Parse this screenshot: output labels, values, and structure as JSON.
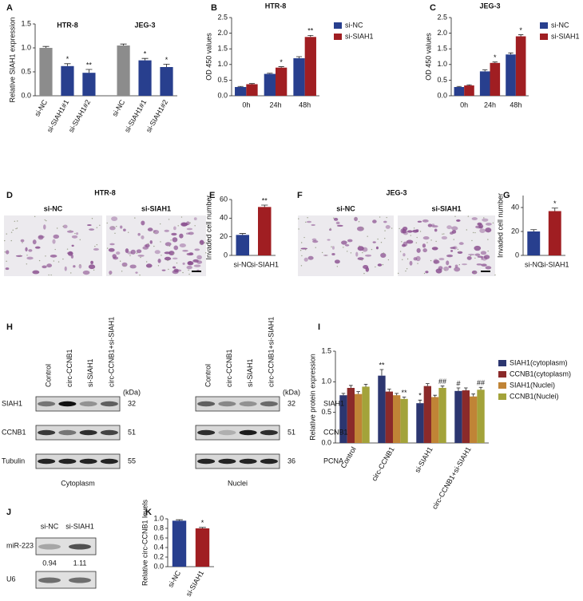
{
  "chart_data": [
    {
      "type": "bar",
      "ylabel": "Relative SIAH1 expression",
      "group_labels": [
        "HTR-8",
        "JEG-3"
      ],
      "categories": [
        "si-NC",
        "si-SIAH1#1",
        "si-SIAH1#2",
        "si-NC",
        "si-SIAH1#1",
        "si-SIAH1#2"
      ],
      "values": [
        1.0,
        0.62,
        0.48,
        1.05,
        0.74,
        0.6
      ],
      "errors": [
        0.03,
        0.05,
        0.07,
        0.03,
        0.04,
        0.06
      ],
      "annotations": [
        null,
        "*",
        "**",
        null,
        "*",
        "*"
      ],
      "colors": [
        "#8c8c8c",
        "#283f8e",
        "#283f8e",
        "#8c8c8c",
        "#283f8e",
        "#283f8e"
      ],
      "ylim": [
        0,
        1.5
      ],
      "yticks": [
        {
          "value": 0,
          "label": "0.0"
        },
        0.5,
        {
          "value": 1,
          "label": "1.0"
        },
        1.5
      ]
    },
    {
      "type": "bar",
      "title": "HTR-8",
      "ylabel": "OD 450 values",
      "categories": [
        "0h",
        "24h",
        "48h"
      ],
      "series": [
        {
          "name": "si-NC",
          "color": "#283f8e",
          "values": [
            0.28,
            0.7,
            1.2
          ],
          "errors": [
            0.02,
            0.02,
            0.05
          ],
          "annotations": [
            null,
            null,
            null
          ]
        },
        {
          "name": "si-SIAH1",
          "color": "#a01e22",
          "values": [
            0.37,
            0.9,
            1.88
          ],
          "errors": [
            0.02,
            0.03,
            0.05
          ],
          "annotations": [
            null,
            "*",
            "**"
          ]
        }
      ],
      "ylim": [
        0,
        2.5
      ],
      "yticks": [
        {
          "value": 0,
          "label": "0.0"
        },
        0.5,
        {
          "value": 1,
          "label": "1.0"
        },
        1.5,
        {
          "value": 2,
          "label": "2.0"
        },
        2.5
      ],
      "legend": "upper right"
    },
    {
      "type": "bar",
      "title": "JEG-3",
      "ylabel": "OD 450 values",
      "categories": [
        "0h",
        "24h",
        "48h"
      ],
      "series": [
        {
          "name": "si-NC",
          "color": "#283f8e",
          "values": [
            0.28,
            0.78,
            1.32
          ],
          "errors": [
            0.02,
            0.05,
            0.05
          ],
          "annotations": [
            null,
            null,
            null
          ]
        },
        {
          "name": "si-SIAH1",
          "color": "#a01e22",
          "values": [
            0.33,
            1.05,
            1.9
          ],
          "errors": [
            0.02,
            0.03,
            0.05
          ],
          "annotations": [
            null,
            "*",
            "*"
          ]
        }
      ],
      "ylim": [
        0,
        2.5
      ],
      "yticks": [
        {
          "value": 0,
          "label": "0.0"
        },
        0.5,
        {
          "value": 1,
          "label": "1.0"
        },
        1.5,
        {
          "value": 2,
          "label": "2.0"
        },
        2.5
      ],
      "legend": "upper right"
    },
    {
      "type": "bar",
      "ylabel": "Invaded cell number",
      "categories": [
        "si-NC",
        "si-SIAH1"
      ],
      "values": [
        22,
        52
      ],
      "errors": [
        1.5,
        2
      ],
      "annotations": [
        null,
        "**"
      ],
      "colors": [
        "#283f8e",
        "#a01e22"
      ],
      "ylim": [
        0,
        60
      ],
      "yticks": [
        0,
        20,
        40,
        60
      ]
    },
    {
      "type": "bar",
      "ylabel": "Invaded cell number",
      "categories": [
        "si-NC",
        "si-SIAH1"
      ],
      "values": [
        20,
        37
      ],
      "errors": [
        1.5,
        2.5
      ],
      "annotations": [
        null,
        "*"
      ],
      "colors": [
        "#283f8e",
        "#a01e22"
      ],
      "ylim": [
        0,
        50
      ],
      "yticks": [
        0,
        20,
        40
      ]
    },
    {
      "type": "bar",
      "ylabel": "Relative protein expression",
      "categories": [
        "Control",
        "circ-CCNB1",
        "si-SIAH1",
        "circ-CCNB1+si-SIAH1"
      ],
      "series": [
        {
          "name": "SIAH1(cytoplasm)",
          "color": "#2c3670",
          "values": [
            0.78,
            1.1,
            0.65,
            0.85
          ],
          "errors": [
            0.03,
            0.1,
            0.05,
            0.05
          ],
          "annotations": [
            null,
            "**",
            "*",
            "#"
          ]
        },
        {
          "name": "CCNB1(cytoplasm)",
          "color": "#8b2a2a",
          "values": [
            0.9,
            0.84,
            0.93,
            0.86
          ],
          "errors": [
            0.04,
            0.04,
            0.04,
            0.04
          ],
          "annotations": [
            null,
            null,
            null,
            null
          ]
        },
        {
          "name": "SIAH1(Nuclei)",
          "color": "#c08436",
          "values": [
            0.8,
            0.78,
            0.75,
            0.76
          ],
          "errors": [
            0.04,
            0.03,
            0.03,
            0.04
          ],
          "annotations": [
            null,
            null,
            null,
            null
          ]
        },
        {
          "name": "CCNB1(Nuclei)",
          "color": "#a3a33a",
          "values": [
            0.92,
            0.72,
            0.9,
            0.87
          ],
          "errors": [
            0.04,
            0.03,
            0.03,
            0.04
          ],
          "annotations": [
            null,
            "**",
            "##",
            "##"
          ]
        }
      ],
      "ylim": [
        0,
        1.5
      ],
      "yticks": [
        {
          "value": 0,
          "label": "0.0"
        },
        0.5,
        {
          "value": 1,
          "label": "1.0"
        },
        1.5
      ],
      "legend": "right"
    },
    {
      "type": "bar",
      "ylabel": "Relative circ-CCNB1 levels",
      "categories": [
        "si-NC",
        "si-SIAH1"
      ],
      "values": [
        0.96,
        0.8
      ],
      "errors": [
        0.02,
        0.02
      ],
      "annotations": [
        null,
        "*"
      ],
      "colors": [
        "#283f8e",
        "#a01e22"
      ],
      "ylim": [
        0,
        1
      ],
      "yticks": [
        {
          "value": 0,
          "label": "0.0"
        },
        0.2,
        0.4,
        0.6,
        0.8,
        {
          "value": 1,
          "label": "1.0"
        }
      ]
    }
  ],
  "figure": {
    "panel_labels": [
      "A",
      "B",
      "C",
      "D",
      "E",
      "F",
      "G",
      "H",
      "I",
      "J",
      "K"
    ],
    "invasion": [
      {
        "title": "HTR-8",
        "labels": [
          "si-NC",
          "si-SIAH1"
        ]
      },
      {
        "title": "JEG-3",
        "labels": [
          "si-NC",
          "si-SIAH1"
        ]
      }
    ],
    "blots": [
      {
        "lanes": [
          "Control",
          "circ-CCNB1",
          "si-SIAH1",
          "circ-CCNB1+si-SIAH1"
        ],
        "unit": "(kDa)",
        "rows": [
          {
            "label": "SIAH1",
            "kda": 32
          },
          {
            "label": "CCNB1",
            "kda": 51
          },
          {
            "label": "Tubulin",
            "kda": 55
          }
        ],
        "caption": "Cytoplasm"
      },
      {
        "lanes": [
          "Control",
          "circ-CCNB1",
          "si-SIAH1",
          "circ-CCNB1+si-SIAH1"
        ],
        "unit": "(kDa)",
        "rows": [
          {
            "label": "SIAH1",
            "kda": 32
          },
          {
            "label": "CCNB1",
            "kda": 51
          },
          {
            "label": "PCNA",
            "kda": 36
          }
        ],
        "caption": "Nuclei"
      }
    ],
    "mirna": {
      "lanes": [
        "si-NC",
        "si-SIAH1"
      ],
      "rows": [
        "miR-223",
        "U6"
      ],
      "ratios": [
        0.94,
        1.11
      ]
    }
  }
}
